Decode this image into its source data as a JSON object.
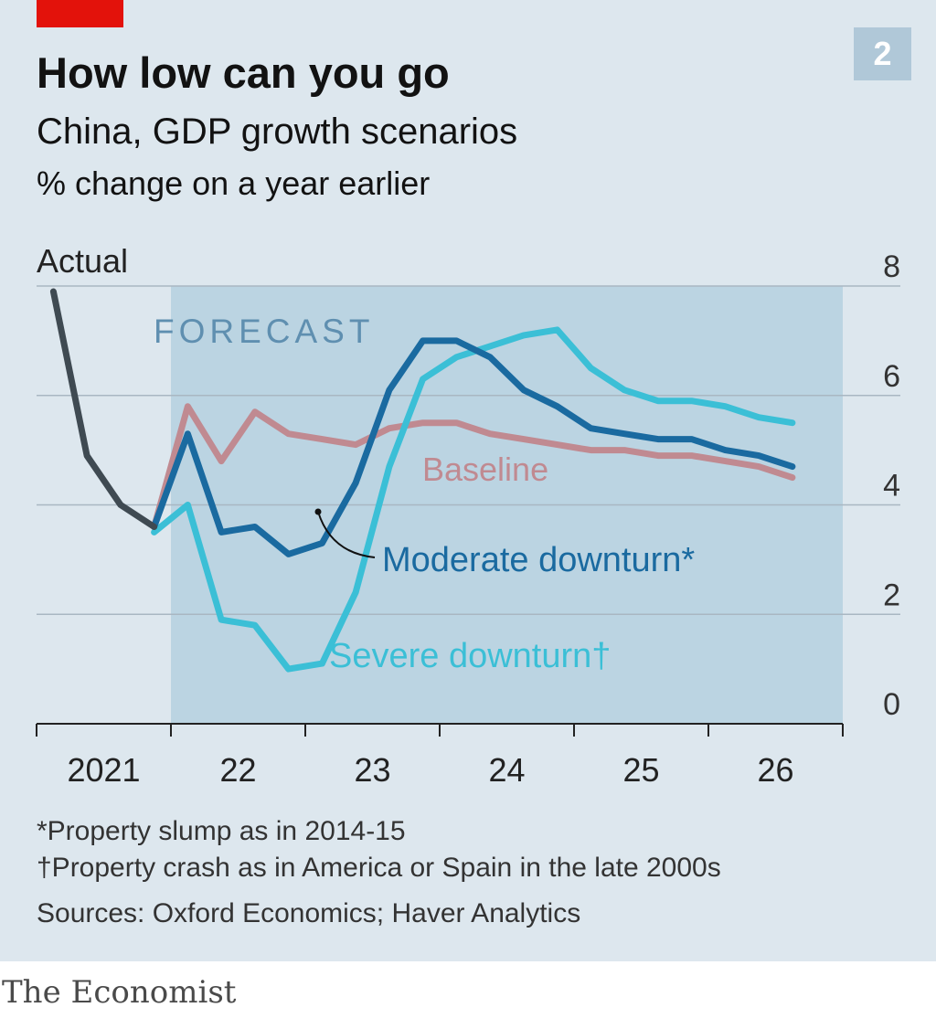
{
  "chart_number": "2",
  "title": "How low can you go",
  "subtitle": "China, GDP growth scenarios",
  "unit": "% change on a year earlier",
  "brand": "The Economist",
  "colors": {
    "background": "#dde7ee",
    "forecast_band": "#bbd4e2",
    "accent": "#e3120b"
  },
  "chart_data": {
    "type": "line",
    "ylim": [
      0,
      8
    ],
    "yticks": [
      0,
      2,
      4,
      6,
      8
    ],
    "grid": true,
    "forecast_label": "FORECAST",
    "forecast_start": 2021.75,
    "xlim": [
      2020.75,
      2026.75
    ],
    "xtick_positions": [
      2020.75,
      2021.75,
      2022.75,
      2023.75,
      2024.75,
      2025.75,
      2026.75
    ],
    "xlabels": [
      {
        "x": 2021.25,
        "label": "2021"
      },
      {
        "x": 2022.25,
        "label": "22"
      },
      {
        "x": 2023.25,
        "label": "23"
      },
      {
        "x": 2024.25,
        "label": "24"
      },
      {
        "x": 2025.25,
        "label": "25"
      },
      {
        "x": 2026.25,
        "label": "26"
      }
    ],
    "series": [
      {
        "name": "Actual",
        "color": "#3f4a52",
        "x": [
          2020.875,
          2021.125,
          2021.375,
          2021.625
        ],
        "y": [
          7.9,
          4.9,
          4.0,
          3.6
        ]
      },
      {
        "name": "Baseline",
        "color": "#c08a91",
        "x": [
          2021.625,
          2021.875,
          2022.125,
          2022.375,
          2022.625,
          2022.875,
          2023.125,
          2023.375,
          2023.625,
          2023.875,
          2024.125,
          2024.375,
          2024.625,
          2024.875,
          2025.125,
          2025.375,
          2025.625,
          2025.875,
          2026.125,
          2026.375
        ],
        "y": [
          3.6,
          5.8,
          4.8,
          5.7,
          5.3,
          5.2,
          5.1,
          5.4,
          5.5,
          5.5,
          5.3,
          5.2,
          5.1,
          5.0,
          5.0,
          4.9,
          4.9,
          4.8,
          4.7,
          4.5
        ]
      },
      {
        "name": "Moderate downturn*",
        "color": "#1a6aa0",
        "x": [
          2021.625,
          2021.875,
          2022.125,
          2022.375,
          2022.625,
          2022.875,
          2023.125,
          2023.375,
          2023.625,
          2023.875,
          2024.125,
          2024.375,
          2024.625,
          2024.875,
          2025.125,
          2025.375,
          2025.625,
          2025.875,
          2026.125,
          2026.375
        ],
        "y": [
          3.6,
          5.3,
          3.5,
          3.6,
          3.1,
          3.3,
          4.4,
          6.1,
          7.0,
          7.0,
          6.7,
          6.1,
          5.8,
          5.4,
          5.3,
          5.2,
          5.2,
          5.0,
          4.9,
          4.7
        ]
      },
      {
        "name": "Severe downturn†",
        "color": "#3bbfd6",
        "x": [
          2021.625,
          2021.875,
          2022.125,
          2022.375,
          2022.625,
          2022.875,
          2023.125,
          2023.375,
          2023.625,
          2023.875,
          2024.125,
          2024.375,
          2024.625,
          2024.875,
          2025.125,
          2025.375,
          2025.625,
          2025.875,
          2026.125,
          2026.375
        ],
        "y": [
          3.5,
          4.0,
          1.9,
          1.8,
          1.0,
          1.1,
          2.4,
          4.7,
          6.3,
          6.7,
          6.9,
          7.1,
          7.2,
          6.5,
          6.1,
          5.9,
          5.9,
          5.8,
          5.6,
          5.5
        ]
      }
    ],
    "line_labels": [
      {
        "text": "Actual",
        "series": 0
      },
      {
        "text": "Baseline",
        "series": 1
      },
      {
        "text": "Moderate downturn*",
        "series": 2
      },
      {
        "text": "Severe downturn†",
        "series": 3
      }
    ]
  },
  "footnotes": [
    "*Property slump as in 2014-15",
    "†Property crash as in America or Spain in the late 2000s",
    "Sources: Oxford Economics; Haver Analytics"
  ]
}
